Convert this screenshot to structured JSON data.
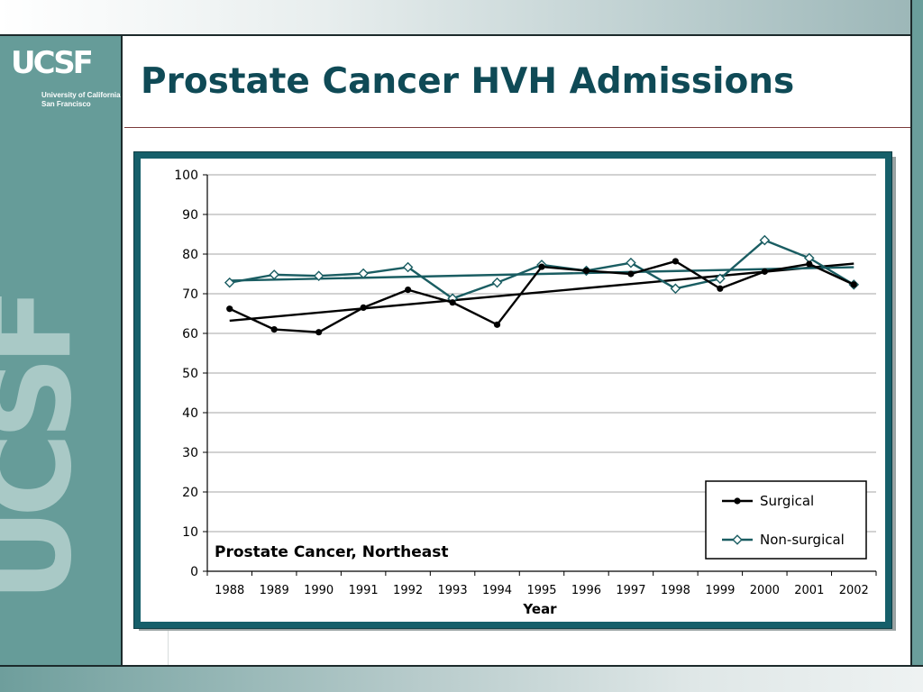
{
  "slide": {
    "title": "Prostate Cancer HVH Admissions",
    "logo": {
      "mark": "UCSF",
      "line1": "University of California",
      "line2": "San Francisco",
      "watermark": "UCSF"
    }
  },
  "colors": {
    "title": "#0f4a56",
    "sidebar": "#669c99",
    "frame": "#165f6a",
    "surgical": "#000000",
    "non_surgical": "#1a5d62"
  },
  "chart_data": {
    "type": "line",
    "annotation": "Prostate Cancer, Northeast",
    "xlabel": "Year",
    "ylabel": "",
    "ylim": [
      0,
      100
    ],
    "yticks": [
      0,
      10,
      20,
      30,
      40,
      50,
      60,
      70,
      80,
      90,
      100
    ],
    "grid": true,
    "legend": "bottom-right",
    "categories": [
      "1988",
      "1989",
      "1990",
      "1991",
      "1992",
      "1993",
      "1994",
      "1995",
      "1996",
      "1997",
      "1998",
      "1999",
      "2000",
      "2001",
      "2002"
    ],
    "series": [
      {
        "name": "Surgical",
        "color": "#000000",
        "marker": "circle",
        "values": [
          66.2,
          61.0,
          60.3,
          66.5,
          71.0,
          67.8,
          62.2,
          76.8,
          75.8,
          75.0,
          78.2,
          71.3,
          75.6,
          77.5,
          72.3
        ],
        "trend": [
          63.2,
          77.6
        ]
      },
      {
        "name": "Non-surgical",
        "color": "#1a5d62",
        "marker": "diamond",
        "values": [
          72.8,
          74.8,
          74.5,
          75.1,
          76.7,
          68.8,
          72.8,
          77.3,
          75.8,
          77.8,
          71.3,
          73.8,
          83.5,
          79.0,
          72.3
        ],
        "trend": [
          73.3,
          76.7
        ]
      }
    ]
  }
}
